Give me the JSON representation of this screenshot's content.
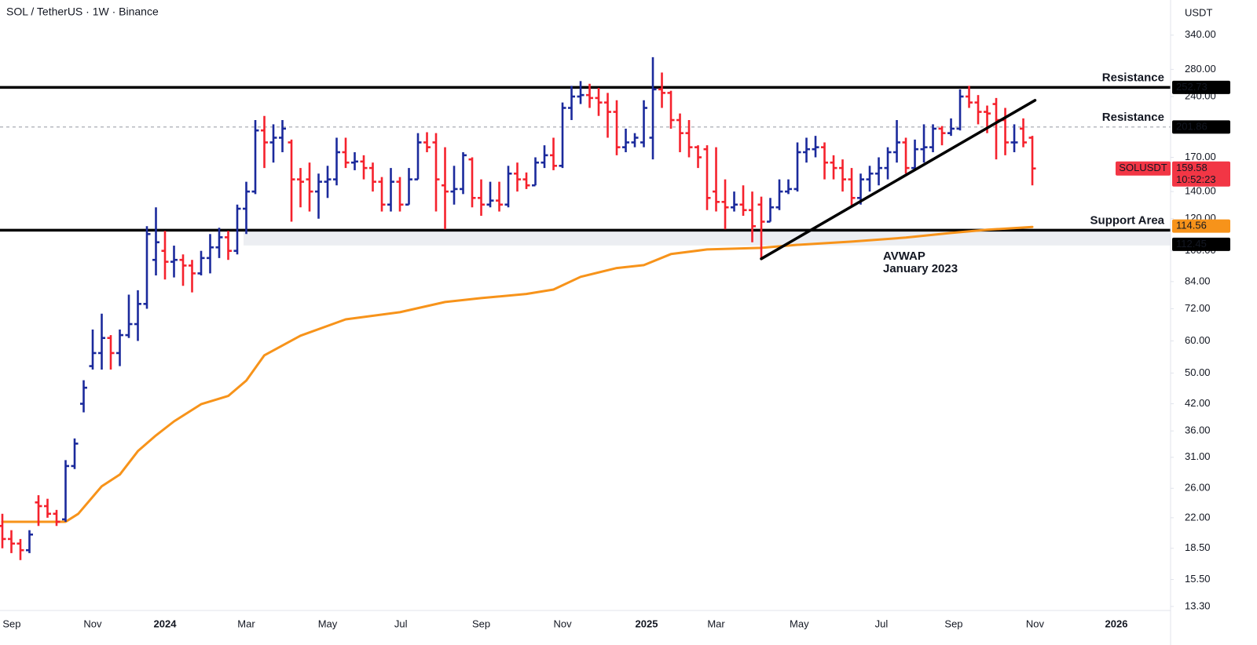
{
  "chart_data": {
    "type": "ohlc",
    "title": "SOL / TetherUS · 1W · Binance",
    "axis_unit": "USDT",
    "up_color": "#1b2a9c",
    "down_color": "#f5222d",
    "log_scale": true,
    "ylim": [
      13,
      415
    ],
    "yticks": [
      {
        "value": 340,
        "label": "340.00"
      },
      {
        "value": 280,
        "label": "280.00"
      },
      {
        "value": 240,
        "label": "240.00"
      },
      {
        "value": 170,
        "label": "170.00"
      },
      {
        "value": 140,
        "label": "140.00"
      },
      {
        "value": 120,
        "label": "120.00"
      },
      {
        "value": 100,
        "label": "100.00"
      },
      {
        "value": 84,
        "label": "84.00"
      },
      {
        "value": 72,
        "label": "72.00"
      },
      {
        "value": 60,
        "label": "60.00"
      },
      {
        "value": 50,
        "label": "50.00"
      },
      {
        "value": 42,
        "label": "42.00"
      },
      {
        "value": 36,
        "label": "36.00"
      },
      {
        "value": 31,
        "label": "31.00"
      },
      {
        "value": 26,
        "label": "26.00"
      },
      {
        "value": 22,
        "label": "22.00"
      },
      {
        "value": 18.5,
        "label": "18.50"
      },
      {
        "value": 15.5,
        "label": "15.50"
      },
      {
        "value": 13.3,
        "label": "13.30"
      }
    ],
    "xlim": [
      -0.26,
      129.3
    ],
    "xticks": [
      {
        "value": 1.04,
        "label": "Sep"
      },
      {
        "value": 10,
        "label": "Nov"
      },
      {
        "value": 18,
        "label": "2024",
        "bold": true
      },
      {
        "value": 27,
        "label": "Mar"
      },
      {
        "value": 36,
        "label": "May"
      },
      {
        "value": 44.1,
        "label": "Jul"
      },
      {
        "value": 53,
        "label": "Sep"
      },
      {
        "value": 62,
        "label": "Nov"
      },
      {
        "value": 71.3,
        "label": "2025",
        "bold": true
      },
      {
        "value": 79,
        "label": "Mar"
      },
      {
        "value": 88.2,
        "label": "May"
      },
      {
        "value": 97.3,
        "label": "Jul"
      },
      {
        "value": 105.3,
        "label": "Sep"
      },
      {
        "value": 114.3,
        "label": "Nov"
      },
      {
        "value": 123.3,
        "label": "2026",
        "bold": true
      }
    ],
    "ohlc": [
      [
        21,
        22.5,
        18.5,
        19.5
      ],
      [
        19.5,
        20.5,
        18,
        19
      ],
      [
        19,
        19.5,
        17.3,
        18.3
      ],
      [
        18.3,
        20.5,
        18,
        20
      ],
      [
        24,
        25,
        21,
        23.5
      ],
      [
        23.5,
        24.5,
        22,
        22.5
      ],
      [
        22.5,
        23,
        21,
        21.5
      ],
      [
        21.8,
        30.5,
        21.5,
        29.5
      ],
      [
        29.5,
        34.5,
        29,
        33.5
      ],
      [
        42,
        48,
        40,
        46
      ],
      [
        52,
        64,
        51,
        56
      ],
      [
        56,
        70,
        51,
        61
      ],
      [
        61,
        62,
        51,
        56
      ],
      [
        56,
        64,
        52,
        62
      ],
      [
        62,
        78,
        61,
        66
      ],
      [
        66,
        80,
        60,
        74
      ],
      [
        74,
        115,
        72,
        110
      ],
      [
        95,
        128,
        87,
        105
      ],
      [
        100,
        112,
        85,
        94
      ],
      [
        94,
        103,
        86,
        95
      ],
      [
        95,
        98,
        82,
        92
      ],
      [
        92,
        95,
        79,
        88
      ],
      [
        88,
        100,
        87,
        96
      ],
      [
        96,
        110,
        88,
        102
      ],
      [
        102,
        114,
        96,
        108
      ],
      [
        108,
        112,
        95,
        100
      ],
      [
        100,
        130,
        98,
        127
      ],
      [
        127,
        148,
        110,
        140
      ],
      [
        140,
        210,
        138,
        198
      ],
      [
        198,
        215,
        160,
        185
      ],
      [
        185,
        205,
        165,
        190
      ],
      [
        190,
        210,
        175,
        200
      ],
      [
        185,
        188,
        118,
        150
      ],
      [
        150,
        160,
        128,
        148
      ],
      [
        150,
        165,
        125,
        140
      ],
      [
        140,
        155,
        120,
        148
      ],
      [
        148,
        162,
        135,
        150
      ],
      [
        150,
        190,
        145,
        175
      ],
      [
        175,
        190,
        160,
        165
      ],
      [
        165,
        175,
        158,
        166
      ],
      [
        166,
        172,
        150,
        160
      ],
      [
        160,
        165,
        140,
        148
      ],
      [
        148,
        152,
        125,
        130
      ],
      [
        130,
        160,
        125,
        148
      ],
      [
        148,
        152,
        125,
        130
      ],
      [
        130,
        160,
        130,
        150
      ],
      [
        150,
        195,
        150,
        185
      ],
      [
        185,
        196,
        175,
        180
      ],
      [
        185,
        195,
        125,
        150
      ],
      [
        145,
        180,
        113,
        140
      ],
      [
        140,
        162,
        130,
        142
      ],
      [
        142,
        175,
        138,
        172
      ],
      [
        168,
        170,
        128,
        135
      ],
      [
        135,
        150,
        122,
        130
      ],
      [
        130,
        148,
        128,
        133
      ],
      [
        133,
        148,
        125,
        130
      ],
      [
        130,
        162,
        128,
        155
      ],
      [
        155,
        165,
        140,
        150
      ],
      [
        150,
        156,
        142,
        145
      ],
      [
        145,
        170,
        145,
        165
      ],
      [
        165,
        182,
        160,
        172
      ],
      [
        172,
        190,
        158,
        162
      ],
      [
        162,
        232,
        160,
        225
      ],
      [
        225,
        255,
        210,
        240
      ],
      [
        240,
        262,
        230,
        242
      ],
      [
        242,
        258,
        225,
        238
      ],
      [
        238,
        252,
        215,
        232
      ],
      [
        232,
        245,
        190,
        220
      ],
      [
        220,
        235,
        172,
        180
      ],
      [
        180,
        200,
        175,
        185
      ],
      [
        185,
        195,
        180,
        190
      ],
      [
        185,
        235,
        180,
        225
      ],
      [
        190,
        300,
        168,
        250
      ],
      [
        250,
        275,
        225,
        245
      ],
      [
        245,
        248,
        200,
        210
      ],
      [
        210,
        218,
        175,
        195
      ],
      [
        195,
        210,
        170,
        180
      ],
      [
        180,
        182,
        160,
        170
      ],
      [
        178,
        182,
        126,
        135
      ],
      [
        140,
        180,
        125,
        132
      ],
      [
        132,
        150,
        113,
        128
      ],
      [
        128,
        140,
        125,
        130
      ],
      [
        130,
        145,
        122,
        126
      ],
      [
        126,
        140,
        105,
        115
      ],
      [
        130,
        136,
        95,
        118
      ],
      [
        118,
        135,
        118,
        128
      ],
      [
        128,
        150,
        126,
        140
      ],
      [
        140,
        150,
        138,
        142
      ],
      [
        142,
        185,
        140,
        175
      ],
      [
        175,
        190,
        165,
        178
      ],
      [
        178,
        192,
        170,
        180
      ],
      [
        180,
        185,
        150,
        165
      ],
      [
        165,
        172,
        150,
        160
      ],
      [
        160,
        168,
        140,
        150
      ],
      [
        150,
        160,
        128,
        135
      ],
      [
        135,
        155,
        130,
        150
      ],
      [
        150,
        162,
        140,
        155
      ],
      [
        155,
        170,
        145,
        160
      ],
      [
        160,
        180,
        150,
        175
      ],
      [
        175,
        210,
        165,
        185
      ],
      [
        185,
        190,
        155,
        160
      ],
      [
        160,
        188,
        158,
        178
      ],
      [
        178,
        205,
        165,
        180
      ],
      [
        180,
        205,
        175,
        200
      ],
      [
        200,
        203,
        182,
        195
      ],
      [
        195,
        212,
        192,
        200
      ],
      [
        200,
        250,
        198,
        240
      ],
      [
        240,
        255,
        225,
        232
      ],
      [
        232,
        242,
        205,
        220
      ],
      [
        220,
        228,
        195,
        218
      ],
      [
        230,
        238,
        168,
        210
      ],
      [
        210,
        225,
        172,
        185
      ],
      [
        185,
        205,
        175,
        185
      ],
      [
        200,
        212,
        180,
        185
      ],
      [
        190,
        192,
        145,
        159.58
      ]
    ],
    "avwap": {
      "name": "AVWAP",
      "anchor": "January 2023",
      "color": "#f7931a",
      "x": [
        0,
        7,
        8.4,
        11,
        13,
        15,
        17,
        19,
        22,
        25,
        27,
        29,
        33,
        38,
        44,
        49,
        53,
        58,
        61,
        64,
        68,
        71,
        74,
        78,
        84,
        88,
        94,
        100,
        105,
        109,
        114
      ],
      "values": [
        21.5,
        21.5,
        22.5,
        26.3,
        28.1,
        32.1,
        35.1,
        38,
        41.9,
        43.9,
        47.9,
        55.3,
        61.8,
        67.8,
        70.6,
        74.8,
        76.5,
        78.3,
        80.3,
        86.3,
        90.7,
        92.2,
        98.2,
        100.8,
        101.7,
        103.5,
        105.4,
        107.8,
        110.7,
        112.7,
        114.56
      ]
    },
    "trendline": {
      "x": [
        84,
        114.3
      ],
      "values": [
        95.6,
        235
      ],
      "color": "#000000"
    },
    "levels": [
      {
        "label": "Resistance",
        "value": 252.73,
        "style": "solid"
      },
      {
        "label": "Resistance",
        "value": 201.86,
        "style": "dashed"
      },
      {
        "label": "Support Area",
        "value": 112.45,
        "style": "solid",
        "band_low": 103.1,
        "band_start": 26.7
      }
    ],
    "last_price": {
      "symbol": "SOLUSDT",
      "countdown": "10:52:23",
      "color": "#f23645"
    }
  }
}
